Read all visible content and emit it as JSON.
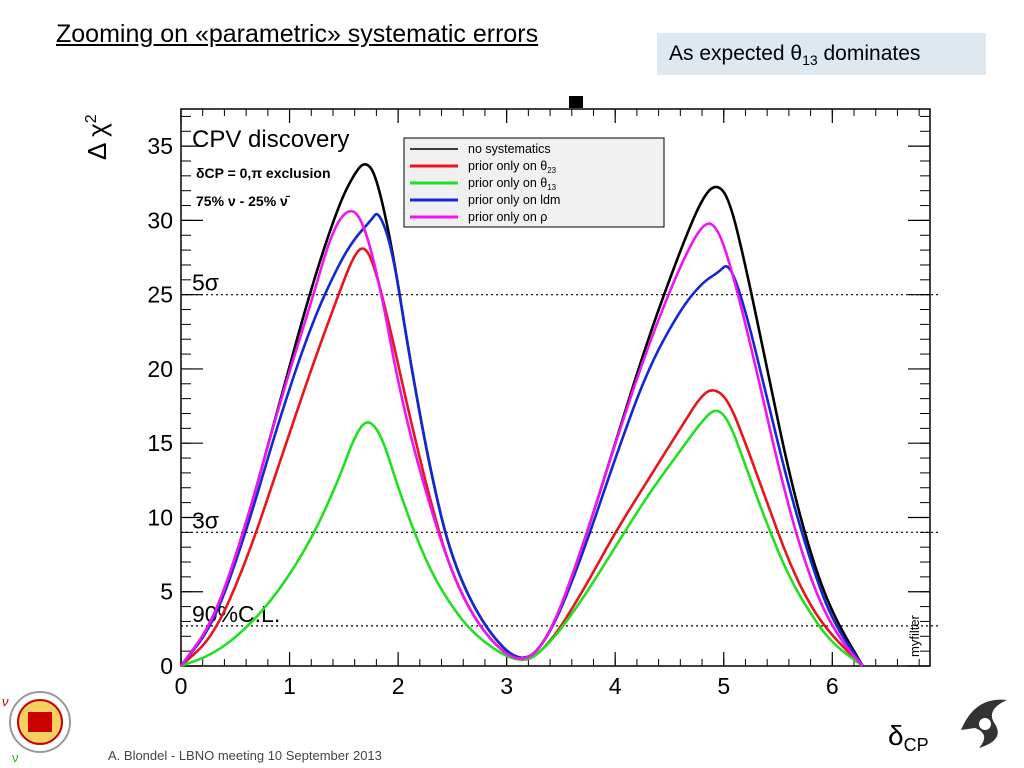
{
  "slide": {
    "title": "Zooming on «parametric» systematic errors",
    "callout_prefix": "As expected ",
    "callout_theta": "θ",
    "callout_sub": "13",
    "callout_suffix": " dominates",
    "footer": "A. Blondel - LBNO meeting 10 September 2013"
  },
  "colors": {
    "no_systematics": "#000000",
    "prior_theta23": "#e8141e",
    "prior_theta13": "#20e020",
    "prior_ldm": "#1428d2",
    "prior_rho": "#f014f0",
    "callout_bg": "#dde8f0",
    "legend_bg": "#f0f0f0"
  },
  "chart_data": {
    "type": "line",
    "title": "CPV discovery",
    "subtitle_lines": [
      "δCP = 0,π exclusion",
      "75% ν - 25% ν̄"
    ],
    "xlabel": "δCP",
    "ylabel": "Δ χ²",
    "xlim": [
      0,
      6.9
    ],
    "ylim": [
      0,
      37.5
    ],
    "xticks": [
      0,
      1,
      2,
      3,
      4,
      5,
      6
    ],
    "yticks": [
      0,
      5,
      10,
      15,
      20,
      25,
      30,
      35
    ],
    "grid": false,
    "legend_position": "top-right",
    "watermark": "myfilter",
    "reference_lines": [
      {
        "label": "5σ",
        "y": 25
      },
      {
        "label": "3σ",
        "y": 9
      },
      {
        "label": "90%C.L.",
        "y": 2.7
      }
    ],
    "series": [
      {
        "name": "no systematics",
        "color_key": "no_systematics",
        "points": [
          [
            0,
            0
          ],
          [
            0.3,
            3
          ],
          [
            0.6,
            9.5
          ],
          [
            0.9,
            17.5
          ],
          [
            1.2,
            25.5
          ],
          [
            1.45,
            31
          ],
          [
            1.6,
            33.2
          ],
          [
            1.7,
            34
          ],
          [
            1.8,
            33
          ],
          [
            1.95,
            28
          ],
          [
            2.1,
            21
          ],
          [
            2.3,
            13
          ],
          [
            2.5,
            7
          ],
          [
            2.8,
            2.5
          ],
          [
            3.14,
            0
          ],
          [
            3.4,
            2
          ],
          [
            3.7,
            8
          ],
          [
            4.0,
            15
          ],
          [
            4.3,
            22
          ],
          [
            4.6,
            28
          ],
          [
            4.8,
            31.5
          ],
          [
            4.93,
            32.5
          ],
          [
            5.05,
            31.5
          ],
          [
            5.2,
            27
          ],
          [
            5.4,
            20
          ],
          [
            5.6,
            13
          ],
          [
            5.8,
            7.5
          ],
          [
            6.0,
            3.5
          ],
          [
            6.28,
            0
          ]
        ]
      },
      {
        "name": "prior only on θ23",
        "color_key": "prior_theta23",
        "label_prefix": "prior only on θ",
        "label_sub": "23",
        "points": [
          [
            0,
            0
          ],
          [
            0.3,
            2
          ],
          [
            0.6,
            7
          ],
          [
            0.9,
            13.5
          ],
          [
            1.2,
            20
          ],
          [
            1.45,
            25
          ],
          [
            1.6,
            27.8
          ],
          [
            1.7,
            28.3
          ],
          [
            1.8,
            26.5
          ],
          [
            1.95,
            22
          ],
          [
            2.1,
            17
          ],
          [
            2.3,
            11
          ],
          [
            2.5,
            6
          ],
          [
            2.8,
            2
          ],
          [
            3.14,
            0
          ],
          [
            3.4,
            1.5
          ],
          [
            3.7,
            5
          ],
          [
            4.0,
            9
          ],
          [
            4.3,
            12.5
          ],
          [
            4.6,
            16
          ],
          [
            4.8,
            18.3
          ],
          [
            4.92,
            18.7
          ],
          [
            5.05,
            17.8
          ],
          [
            5.2,
            15
          ],
          [
            5.4,
            11
          ],
          [
            5.6,
            7
          ],
          [
            5.8,
            4
          ],
          [
            6.0,
            2
          ],
          [
            6.28,
            0
          ]
        ]
      },
      {
        "name": "prior only on θ13",
        "color_key": "prior_theta13",
        "label_prefix": "prior only on θ",
        "label_sub": "13",
        "points": [
          [
            0,
            0
          ],
          [
            0.3,
            0.8
          ],
          [
            0.6,
            2.5
          ],
          [
            0.9,
            5
          ],
          [
            1.2,
            8.5
          ],
          [
            1.45,
            12.5
          ],
          [
            1.6,
            15.5
          ],
          [
            1.72,
            16.7
          ],
          [
            1.85,
            15.5
          ],
          [
            2.0,
            12
          ],
          [
            2.2,
            8
          ],
          [
            2.4,
            5
          ],
          [
            2.7,
            2
          ],
          [
            3.14,
            0
          ],
          [
            3.4,
            1.5
          ],
          [
            3.7,
            4.5
          ],
          [
            4.0,
            8
          ],
          [
            4.3,
            11.5
          ],
          [
            4.6,
            14.5
          ],
          [
            4.8,
            16.5
          ],
          [
            4.93,
            17.4
          ],
          [
            5.05,
            16.5
          ],
          [
            5.2,
            13.5
          ],
          [
            5.4,
            9.5
          ],
          [
            5.6,
            6
          ],
          [
            5.8,
            3.5
          ],
          [
            6.0,
            1.5
          ],
          [
            6.28,
            0
          ]
        ]
      },
      {
        "name": "prior only on ldm",
        "color_key": "prior_ldm",
        "points": [
          [
            0,
            0
          ],
          [
            0.3,
            2.8
          ],
          [
            0.6,
            9
          ],
          [
            0.9,
            16.5
          ],
          [
            1.2,
            23
          ],
          [
            1.45,
            27
          ],
          [
            1.6,
            28.8
          ],
          [
            1.75,
            30
          ],
          [
            1.82,
            30.7
          ],
          [
            1.95,
            28
          ],
          [
            2.1,
            21
          ],
          [
            2.3,
            13
          ],
          [
            2.5,
            7
          ],
          [
            2.8,
            2.5
          ],
          [
            3.14,
            0
          ],
          [
            3.4,
            2
          ],
          [
            3.7,
            7.5
          ],
          [
            4.0,
            14
          ],
          [
            4.3,
            20
          ],
          [
            4.6,
            24
          ],
          [
            4.8,
            25.8
          ],
          [
            4.95,
            26.5
          ],
          [
            5.05,
            27.2
          ],
          [
            5.2,
            24
          ],
          [
            5.4,
            18
          ],
          [
            5.6,
            12
          ],
          [
            5.8,
            7
          ],
          [
            6.0,
            3
          ],
          [
            6.28,
            0
          ]
        ]
      },
      {
        "name": "prior only on ρ",
        "color_key": "prior_rho",
        "label_prefix": "prior only on ρ",
        "label_sub": "",
        "points": [
          [
            0,
            0
          ],
          [
            0.3,
            3
          ],
          [
            0.6,
            9.5
          ],
          [
            0.9,
            17.5
          ],
          [
            1.2,
            24.5
          ],
          [
            1.4,
            29.5
          ],
          [
            1.57,
            31
          ],
          [
            1.7,
            29.5
          ],
          [
            1.85,
            25
          ],
          [
            2.0,
            19
          ],
          [
            2.2,
            13
          ],
          [
            2.5,
            6
          ],
          [
            2.8,
            2
          ],
          [
            3.14,
            0
          ],
          [
            3.4,
            2
          ],
          [
            3.7,
            8
          ],
          [
            4.0,
            15
          ],
          [
            4.3,
            21.5
          ],
          [
            4.6,
            27
          ],
          [
            4.82,
            30
          ],
          [
            4.95,
            29.5
          ],
          [
            5.1,
            26
          ],
          [
            5.3,
            20
          ],
          [
            5.5,
            13.5
          ],
          [
            5.7,
            8
          ],
          [
            5.9,
            4
          ],
          [
            6.1,
            1.5
          ],
          [
            6.28,
            0
          ]
        ]
      }
    ]
  }
}
